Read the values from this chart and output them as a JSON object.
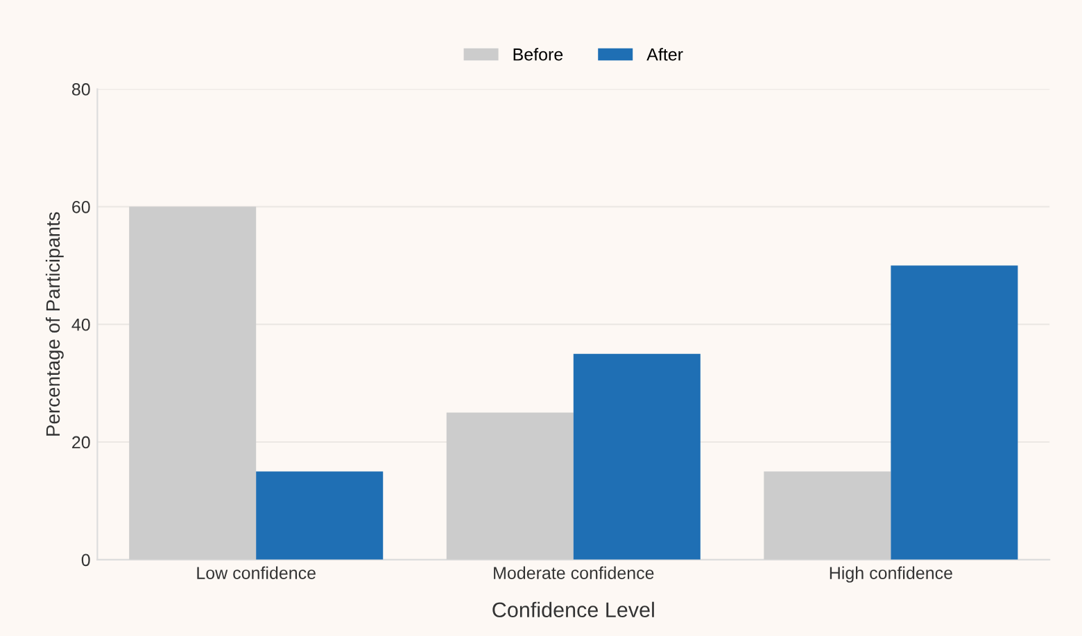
{
  "chart_data": {
    "type": "bar",
    "xlabel": "Confidence Level",
    "ylabel": "Percentage of Participants",
    "categories": [
      "Low confidence",
      "Moderate confidence",
      "High confidence"
    ],
    "series": [
      {
        "name": "Before",
        "color": "#cccccc",
        "values": [
          60,
          25,
          15
        ]
      },
      {
        "name": "After",
        "color": "#1f6fb4",
        "values": [
          15,
          35,
          50
        ]
      }
    ],
    "ylim": [
      0,
      80
    ],
    "yticks": [
      0,
      20,
      40,
      60,
      80
    ],
    "grid": "y",
    "legend": "top"
  }
}
